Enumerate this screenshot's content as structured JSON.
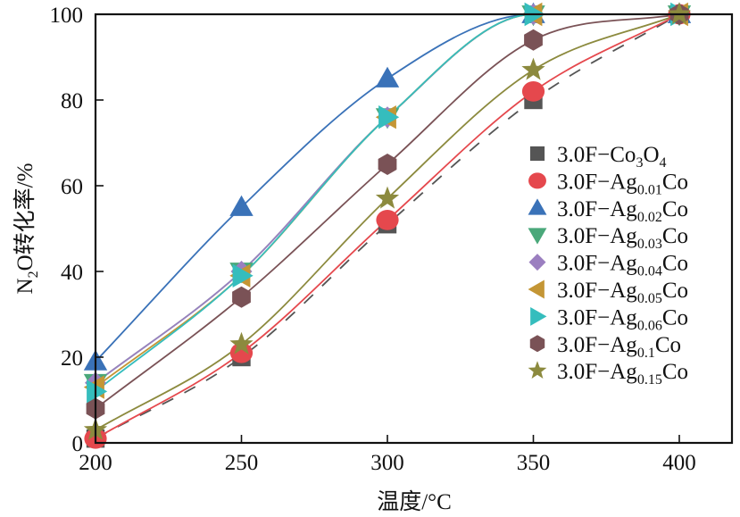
{
  "chart_data": {
    "type": "line",
    "title": "",
    "xlabel": "温度/°C",
    "ylabel_main": "N",
    "ylabel_sub": "2",
    "ylabel_rest": "O转化率/%",
    "ylabel": "N2O转化率/%",
    "xlim": [
      200,
      420
    ],
    "ylim": [
      0,
      100
    ],
    "xticks": [
      200,
      250,
      300,
      350,
      400
    ],
    "yticks": [
      0,
      20,
      40,
      60,
      80,
      100
    ],
    "grid": false,
    "legend_position": "right",
    "x": [
      200,
      250,
      300,
      350,
      400
    ],
    "series": [
      {
        "name": "3.0F-Co3O4",
        "label_main": "3.0F−Co",
        "label_sub": "3",
        "label_tail": "O",
        "label_sub2": "4",
        "marker": "square",
        "color": "#555555",
        "line": "dashed",
        "values": [
          1,
          20,
          51,
          80,
          100
        ]
      },
      {
        "name": "3.0F-Ag0.01Co",
        "label_main": "3.0F−Ag",
        "label_sub": "0.01",
        "label_tail": "Co",
        "marker": "circle",
        "color": "#e5484d",
        "line": "solid",
        "values": [
          1,
          21,
          52,
          82,
          100
        ]
      },
      {
        "name": "3.0F-Ag0.02Co",
        "label_main": "3.0F−Ag",
        "label_sub": "0.02",
        "label_tail": "Co",
        "marker": "triangle-up",
        "color": "#3a72b8",
        "line": "solid",
        "values": [
          19,
          55,
          85,
          100,
          100
        ]
      },
      {
        "name": "3.0F-Ag0.03Co",
        "label_main": "3.0F−Ag",
        "label_sub": "0.03",
        "label_tail": "Co",
        "marker": "triangle-down",
        "color": "#4aa87a",
        "line": "solid",
        "values": [
          14,
          40,
          76,
          100,
          100
        ]
      },
      {
        "name": "3.0F-Ag0.04Co",
        "label_main": "3.0F−Ag",
        "label_sub": "0.04",
        "label_tail": "Co",
        "marker": "diamond",
        "color": "#9b7fc0",
        "line": "solid",
        "values": [
          14,
          40,
          76,
          100,
          100
        ]
      },
      {
        "name": "3.0F-Ag0.05Co",
        "label_main": "3.0F−Ag",
        "label_sub": "0.05",
        "label_tail": "Co",
        "marker": "triangle-left",
        "color": "#c49635",
        "line": "solid",
        "values": [
          13,
          39,
          76,
          100,
          100
        ]
      },
      {
        "name": "3.0F-Ag0.06Co",
        "label_main": "3.0F−Ag",
        "label_sub": "0.06",
        "label_tail": "Co",
        "marker": "triangle-right",
        "color": "#35bdbd",
        "line": "solid",
        "values": [
          12,
          39,
          76,
          100,
          100
        ]
      },
      {
        "name": "3.0F-Ag0.1Co",
        "label_main": "3.0F−Ag",
        "label_sub": "0.1",
        "label_tail": "Co",
        "marker": "hexagon",
        "color": "#7a5256",
        "line": "solid",
        "values": [
          8,
          34,
          65,
          94,
          100
        ]
      },
      {
        "name": "3.0F-Ag0.15Co",
        "label_main": "3.0F−Ag",
        "label_sub": "0.15",
        "label_tail": "Co",
        "marker": "star",
        "color": "#8c8a3e",
        "line": "solid",
        "values": [
          3,
          23,
          57,
          87,
          100
        ]
      }
    ]
  }
}
